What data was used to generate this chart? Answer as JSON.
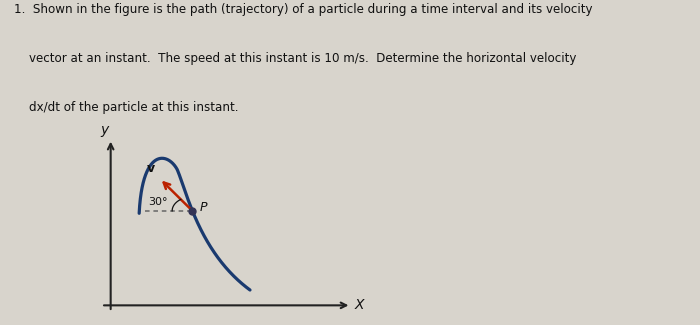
{
  "title_line1": "1.  Shown in the figure is the path (trajectory) of a particle during a time interval and its velocity",
  "title_line2": "    vector at an instant.  The speed at this instant is 10 m/s.  Determine the horizontal velocity",
  "title_line3": "    dx/dt of the particle at this instant.",
  "background_color": "#d8d4cc",
  "curve_color": "#1a3a6f",
  "arrow_color": "#bb2200",
  "dashed_color": "#666666",
  "text_color": "#111111",
  "axis_color": "#222222",
  "point_color": "#333355",
  "xlabel": "X",
  "ylabel": "y",
  "angle_label": "30°",
  "velocity_label": "v",
  "point_label": "P",
  "fig_width": 7.0,
  "fig_height": 3.25,
  "dpi": 100
}
